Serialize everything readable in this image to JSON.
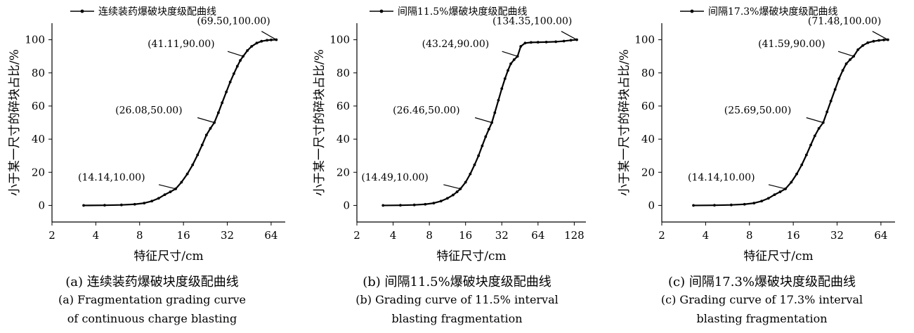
{
  "chart_data": [
    {
      "type": "line",
      "legend": "连续装药爆破块度级配曲线",
      "xlabel": "特征尺寸/cm",
      "ylabel": "小于某一尺寸的碎块占比/%",
      "x_scale": "log2",
      "x_ticks": [
        2,
        4,
        8,
        16,
        32,
        64
      ],
      "y_ticks": [
        0,
        20,
        40,
        60,
        80,
        100
      ],
      "xlim": [
        2,
        80
      ],
      "ylim": [
        -10,
        110
      ],
      "series": [
        {
          "x": [
            3.3,
            4.6,
            6.0,
            7.4,
            8.6,
            9.7,
            10.8,
            11.9,
            13.0,
            14.14,
            15.5,
            17.0,
            18.5,
            20.0,
            21.5,
            23.0,
            24.5,
            26.08,
            27.8,
            29.5,
            31.5,
            33.5,
            35.5,
            37.5,
            39.3,
            41.11,
            44.0,
            47.0,
            51.0,
            55.0,
            60.0,
            64.0,
            69.5
          ],
          "y": [
            0,
            0.1,
            0.3,
            0.7,
            1.4,
            2.6,
            4.3,
            6.5,
            8.2,
            10.0,
            14.0,
            19.0,
            24.5,
            30.5,
            36.5,
            42.5,
            46.5,
            50.0,
            56.0,
            62.0,
            68.5,
            74.5,
            79.5,
            84.0,
            87.5,
            90.0,
            93.5,
            96.0,
            98.0,
            99.1,
            99.7,
            99.9,
            100.0
          ]
        }
      ],
      "annotations": [
        {
          "text": "(69.50,100.00)",
          "x": 69.5,
          "y": 100.0
        },
        {
          "text": "(41.11,90.00)",
          "x": 41.11,
          "y": 90.0
        },
        {
          "text": "(26.08,50.00)",
          "x": 26.08,
          "y": 50.0
        },
        {
          "text": "(14.14,10.00)",
          "x": 14.14,
          "y": 10.0
        }
      ]
    },
    {
      "type": "line",
      "legend": "间隔11.5%爆破块度级配曲线",
      "xlabel": "特征尺寸/cm",
      "ylabel": "小于某一尺寸的碎块占比/%",
      "x_scale": "log2",
      "x_ticks": [
        2,
        4,
        8,
        16,
        32,
        64,
        128
      ],
      "y_ticks": [
        0,
        20,
        40,
        60,
        80,
        100
      ],
      "xlim": [
        2,
        160
      ],
      "ylim": [
        -10,
        110
      ],
      "series": [
        {
          "x": [
            3.3,
            4.6,
            6.0,
            7.4,
            8.7,
            10.0,
            11.3,
            12.6,
            13.6,
            14.49,
            16.0,
            17.5,
            19.0,
            20.5,
            22.0,
            23.5,
            25.0,
            26.46,
            28.0,
            30.0,
            32.0,
            34.0,
            36.0,
            38.0,
            40.5,
            43.24,
            46.0,
            50.0,
            56.0,
            64.0,
            75.0,
            90.0,
            105.0,
            120.0,
            134.35
          ],
          "y": [
            0,
            0.1,
            0.3,
            0.7,
            1.4,
            2.6,
            4.3,
            6.3,
            8.2,
            10.0,
            14.0,
            19.0,
            24.5,
            30.0,
            36.0,
            41.5,
            46.0,
            50.0,
            56.0,
            63.5,
            70.5,
            76.5,
            81.5,
            85.5,
            88.0,
            90.0,
            96.0,
            98.0,
            98.4,
            98.5,
            98.6,
            98.8,
            99.2,
            99.7,
            100.0
          ]
        }
      ],
      "annotations": [
        {
          "text": "(134.35,100.00)",
          "x": 134.35,
          "y": 100.0
        },
        {
          "text": "(43.24,90.00)",
          "x": 43.24,
          "y": 90.0
        },
        {
          "text": "(26.46,50.00)",
          "x": 26.46,
          "y": 50.0
        },
        {
          "text": "(14.49,10.00)",
          "x": 14.49,
          "y": 10.0
        }
      ]
    },
    {
      "type": "line",
      "legend": "间隔17.3%爆破块度级配曲线",
      "xlabel": "特征尺寸/cm",
      "ylabel": "小于某一尺寸的碎块占比/%",
      "x_scale": "log2",
      "x_ticks": [
        2,
        4,
        8,
        16,
        32,
        64
      ],
      "y_ticks": [
        0,
        20,
        40,
        60,
        80,
        100
      ],
      "xlim": [
        2,
        80
      ],
      "ylim": [
        -10,
        110
      ],
      "series": [
        {
          "x": [
            3.3,
            4.6,
            6.0,
            7.4,
            8.6,
            9.7,
            10.8,
            11.9,
            13.0,
            14.14,
            15.5,
            16.9,
            18.3,
            19.7,
            21.1,
            22.5,
            24.0,
            25.69,
            27.3,
            29.0,
            31.0,
            33.0,
            35.0,
            37.0,
            39.3,
            41.59,
            44.5,
            48.0,
            52.0,
            57.0,
            62.0,
            67.0,
            71.48
          ],
          "y": [
            0,
            0.1,
            0.3,
            0.7,
            1.4,
            2.6,
            4.3,
            6.5,
            8.2,
            10.0,
            14.0,
            19.0,
            24.5,
            30.5,
            36.5,
            42.0,
            46.5,
            50.0,
            56.5,
            63.0,
            70.0,
            76.5,
            81.5,
            85.5,
            88.0,
            90.0,
            94.0,
            96.5,
            98.2,
            99.1,
            99.6,
            99.9,
            100.0
          ]
        }
      ],
      "annotations": [
        {
          "text": "(71.48,100.00)",
          "x": 71.48,
          "y": 100.0
        },
        {
          "text": "(41.59,90.00)",
          "x": 41.59,
          "y": 90.0
        },
        {
          "text": "(25.69,50.00)",
          "x": 25.69,
          "y": 50.0
        },
        {
          "text": "(14.14,10.00)",
          "x": 14.14,
          "y": 10.0
        }
      ]
    }
  ],
  "captions": [
    {
      "cn": "(a) 连续装药爆破块度级配曲线",
      "en1": "(a) Fragmentation grading curve",
      "en2": "of continuous charge blasting"
    },
    {
      "cn": "(b) 间隔11.5%爆破块度级配曲线",
      "en1": "(b) Grading curve of 11.5% interval",
      "en2": "blasting fragmentation"
    },
    {
      "cn": "(c) 间隔17.3%爆破块度级配曲线",
      "en1": "(c) Grading curve of 17.3% interval",
      "en2": "blasting fragmentation"
    }
  ]
}
